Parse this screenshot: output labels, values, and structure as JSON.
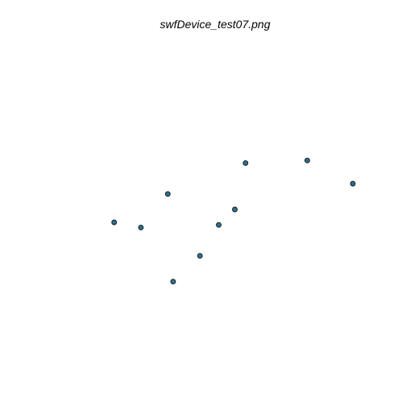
{
  "chart_data": {
    "type": "scatter",
    "title": "swfDevice_test07.png",
    "xlabel": "",
    "ylabel": "",
    "grid": false,
    "axes_visible": false,
    "legend": false,
    "colors": {
      "point_fill": "#2a6f8f",
      "point_stroke": "#1a1a1a",
      "background": "#ffffff"
    },
    "points": [
      {
        "x": 0.05,
        "y": 0.45
      },
      {
        "x": 0.15,
        "y": 0.43
      },
      {
        "x": 0.25,
        "y": 0.56
      },
      {
        "x": 0.27,
        "y": 0.22
      },
      {
        "x": 0.37,
        "y": 0.32
      },
      {
        "x": 0.44,
        "y": 0.44
      },
      {
        "x": 0.5,
        "y": 0.5
      },
      {
        "x": 0.54,
        "y": 0.68
      },
      {
        "x": 0.77,
        "y": 0.69
      },
      {
        "x": 0.94,
        "y": 0.6
      }
    ],
    "xlim": [
      0,
      1
    ],
    "ylim": [
      0,
      1
    ]
  }
}
